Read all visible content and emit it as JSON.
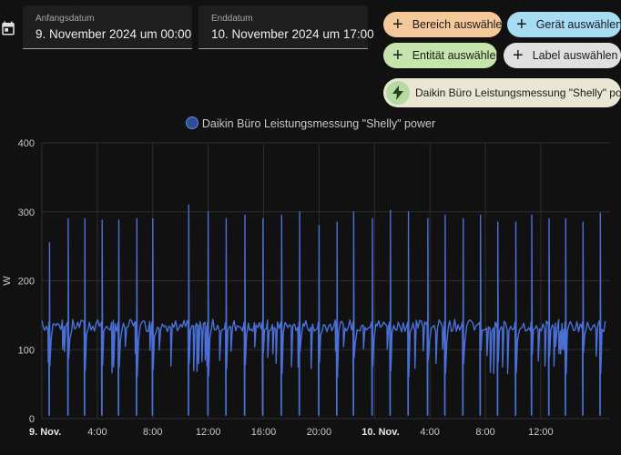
{
  "filters": {
    "start": {
      "label": "Anfangsdatum",
      "value": "9. November 2024 um 00:00"
    },
    "end": {
      "label": "Enddatum",
      "value": "10. November 2024 um 17:00"
    }
  },
  "targets": {
    "area": "Bereich auswählen",
    "device": "Gerät auswählen",
    "entity": "Entität auswählen",
    "label": "Label auswählen"
  },
  "selected_entity": "Daikin Büro Leistungsmessung \"Shelly\" power",
  "icons": {
    "calendar": "calendar-icon",
    "plus": "plus-icon",
    "lightning": "lightning-icon"
  },
  "colors": {
    "series": "#4a6fd6",
    "chip_area": "#f4c99a",
    "chip_device": "#a6dcf4",
    "chip_entity": "#c6e5ad",
    "chip_label": "#e0e0e0"
  },
  "chart_data": {
    "type": "line",
    "title": "",
    "ylabel": "W",
    "ylim": [
      0,
      400
    ],
    "yticks": [
      "0",
      "100",
      "200",
      "300",
      "400"
    ],
    "xlim": [
      0,
      41
    ],
    "xticks": [
      {
        "h": 0,
        "label": "9. Nov.",
        "major": true
      },
      {
        "h": 4,
        "label": "4:00",
        "major": false
      },
      {
        "h": 8,
        "label": "8:00",
        "major": false
      },
      {
        "h": 12,
        "label": "12:00",
        "major": false
      },
      {
        "h": 16,
        "label": "16:00",
        "major": false
      },
      {
        "h": 20,
        "label": "20:00",
        "major": false
      },
      {
        "h": 24,
        "label": "10. Nov.",
        "major": true
      },
      {
        "h": 28,
        "label": "4:00",
        "major": false
      },
      {
        "h": 32,
        "label": "8:00",
        "major": false
      },
      {
        "h": 36,
        "label": "12:00",
        "major": false
      }
    ],
    "grid": true,
    "legend_position": "top",
    "baseline_w": 135,
    "series": [
      {
        "name": "Daikin Büro Leistungsmessung \"Shelly\" power",
        "cycles": [
          {
            "h": 0.55,
            "peak": 255
          },
          {
            "h": 1.9,
            "peak": 290
          },
          {
            "h": 3.1,
            "peak": 290
          },
          {
            "h": 4.35,
            "peak": 288
          },
          {
            "h": 5.55,
            "peak": 288
          },
          {
            "h": 6.85,
            "peak": 290
          },
          {
            "h": 8.0,
            "peak": 290
          },
          {
            "h": 10.6,
            "peak": 310
          },
          {
            "h": 12.0,
            "peak": 300
          },
          {
            "h": 13.3,
            "peak": 290
          },
          {
            "h": 14.65,
            "peak": 295
          },
          {
            "h": 15.95,
            "peak": 290
          },
          {
            "h": 17.3,
            "peak": 295
          },
          {
            "h": 18.6,
            "peak": 300
          },
          {
            "h": 20.0,
            "peak": 280
          },
          {
            "h": 21.3,
            "peak": 285
          },
          {
            "h": 22.5,
            "peak": 300
          },
          {
            "h": 23.85,
            "peak": 290
          },
          {
            "h": 25.15,
            "peak": 302
          },
          {
            "h": 26.45,
            "peak": 300
          },
          {
            "h": 27.85,
            "peak": 290
          },
          {
            "h": 29.1,
            "peak": 295
          },
          {
            "h": 30.4,
            "peak": 290
          },
          {
            "h": 31.65,
            "peak": 295
          },
          {
            "h": 32.9,
            "peak": 285
          },
          {
            "h": 34.2,
            "peak": 285
          },
          {
            "h": 35.35,
            "peak": 295
          },
          {
            "h": 36.6,
            "peak": 290
          },
          {
            "h": 37.8,
            "peak": 290
          },
          {
            "h": 39.05,
            "peak": 285
          },
          {
            "h": 40.3,
            "peak": 298
          }
        ]
      }
    ]
  }
}
